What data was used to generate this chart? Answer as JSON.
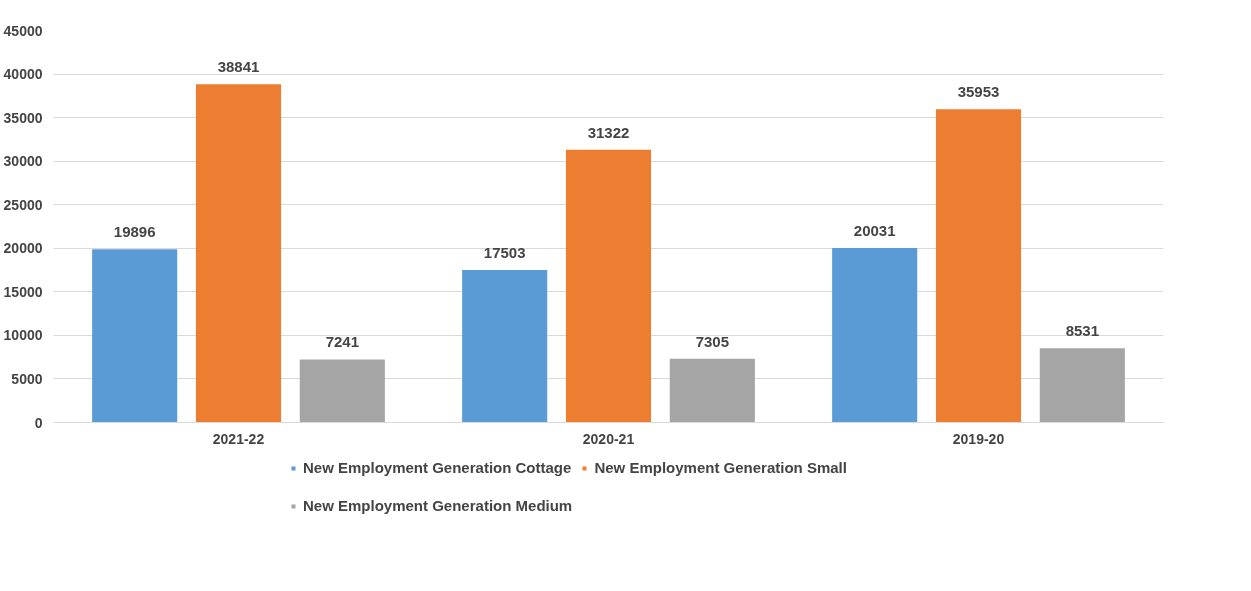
{
  "chart_data": {
    "type": "bar",
    "categories": [
      "2021-22",
      "2020-21",
      "2019-20"
    ],
    "series": [
      {
        "name": "New Employment Generation Cottage",
        "color": "#5b9bd5",
        "values": [
          19896,
          17503,
          20031
        ]
      },
      {
        "name": "New Employment Generation Small",
        "color": "#ed7d31",
        "values": [
          38841,
          31322,
          35953
        ]
      },
      {
        "name": "New Employment Generation Medium",
        "color": "#a5a5a5",
        "values": [
          7241,
          7305,
          8531
        ]
      }
    ],
    "ylim": [
      0,
      45000
    ],
    "yticks": [
      0,
      5000,
      10000,
      15000,
      20000,
      25000,
      30000,
      35000,
      40000,
      45000
    ],
    "grid": "y",
    "legend": "bottom",
    "data_labels": true
  }
}
